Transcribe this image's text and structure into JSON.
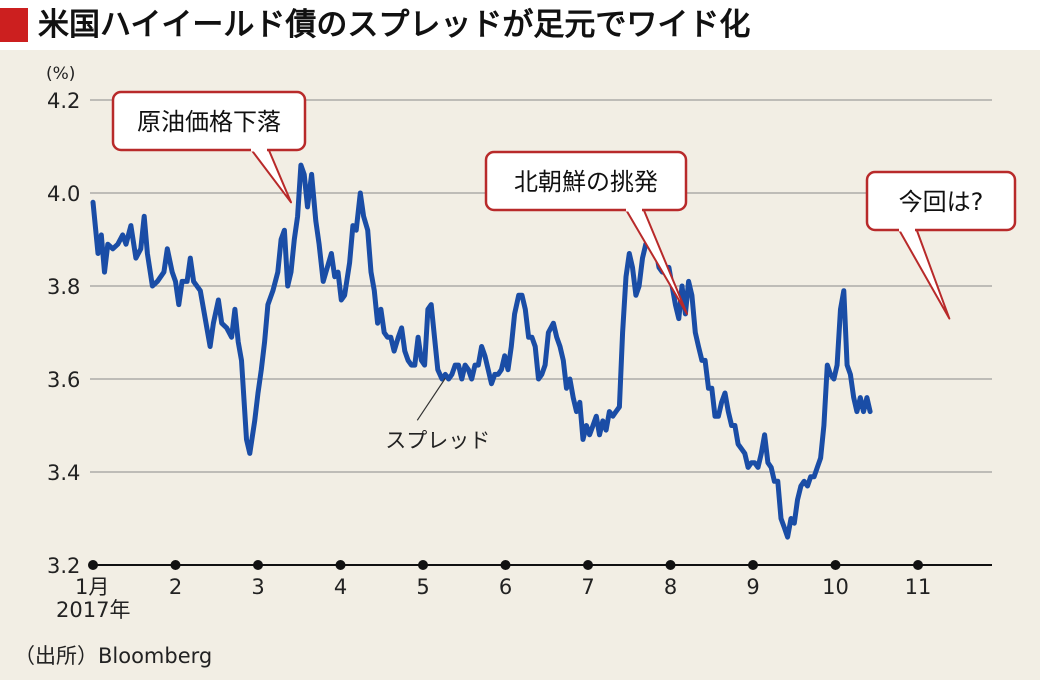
{
  "title": "米国ハイイールド債のスプレッドが足元でワイド化",
  "source": "（出所）Bloomberg",
  "colors": {
    "accent_red": "#cc1f1f",
    "line_blue": "#1a4da6",
    "panel_bg": "#f2eee4",
    "callout_border": "#b82a2a"
  },
  "chart_data": {
    "type": "line",
    "unit_label": "(%)",
    "y_ticks": [
      "4.2",
      "4.0",
      "3.8",
      "3.6",
      "3.4",
      "3.2"
    ],
    "y_tick_values": [
      4.2,
      4.0,
      3.8,
      3.6,
      3.4,
      3.2
    ],
    "ylim": [
      3.2,
      4.2
    ],
    "x_ticks": [
      "1月",
      "2",
      "3",
      "4",
      "5",
      "6",
      "7",
      "8",
      "9",
      "10",
      "11"
    ],
    "x_tick_sub": "2017年",
    "xlim": [
      0,
      10.9
    ],
    "grid": true,
    "series": [
      {
        "name": "スプレッド",
        "points": [
          [
            0.0,
            3.98
          ],
          [
            0.06,
            3.87
          ],
          [
            0.1,
            3.91
          ],
          [
            0.14,
            3.83
          ],
          [
            0.18,
            3.89
          ],
          [
            0.24,
            3.88
          ],
          [
            0.3,
            3.89
          ],
          [
            0.36,
            3.91
          ],
          [
            0.4,
            3.89
          ],
          [
            0.46,
            3.93
          ],
          [
            0.52,
            3.86
          ],
          [
            0.58,
            3.88
          ],
          [
            0.62,
            3.95
          ],
          [
            0.66,
            3.87
          ],
          [
            0.72,
            3.8
          ],
          [
            0.78,
            3.81
          ],
          [
            0.86,
            3.83
          ],
          [
            0.9,
            3.88
          ],
          [
            0.96,
            3.83
          ],
          [
            1.0,
            3.81
          ],
          [
            1.04,
            3.76
          ],
          [
            1.08,
            3.81
          ],
          [
            1.14,
            3.81
          ],
          [
            1.18,
            3.86
          ],
          [
            1.22,
            3.81
          ],
          [
            1.3,
            3.79
          ],
          [
            1.36,
            3.73
          ],
          [
            1.42,
            3.67
          ],
          [
            1.46,
            3.72
          ],
          [
            1.52,
            3.77
          ],
          [
            1.56,
            3.72
          ],
          [
            1.62,
            3.71
          ],
          [
            1.68,
            3.69
          ],
          [
            1.72,
            3.75
          ],
          [
            1.76,
            3.68
          ],
          [
            1.8,
            3.64
          ],
          [
            1.86,
            3.47
          ],
          [
            1.9,
            3.44
          ],
          [
            1.96,
            3.51
          ],
          [
            2.0,
            3.57
          ],
          [
            2.04,
            3.62
          ],
          [
            2.08,
            3.68
          ],
          [
            2.12,
            3.76
          ],
          [
            2.18,
            3.79
          ],
          [
            2.24,
            3.83
          ],
          [
            2.28,
            3.9
          ],
          [
            2.32,
            3.92
          ],
          [
            2.36,
            3.8
          ],
          [
            2.4,
            3.83
          ],
          [
            2.44,
            3.9
          ],
          [
            2.48,
            3.95
          ],
          [
            2.52,
            4.06
          ],
          [
            2.56,
            4.04
          ],
          [
            2.6,
            3.97
          ],
          [
            2.65,
            4.04
          ],
          [
            2.7,
            3.94
          ],
          [
            2.74,
            3.89
          ],
          [
            2.79,
            3.81
          ],
          [
            2.84,
            3.84
          ],
          [
            2.89,
            3.87
          ],
          [
            2.93,
            3.82
          ],
          [
            2.97,
            3.83
          ],
          [
            3.01,
            3.77
          ],
          [
            3.05,
            3.78
          ],
          [
            3.11,
            3.85
          ],
          [
            3.15,
            3.93
          ],
          [
            3.19,
            3.92
          ],
          [
            3.24,
            4.0
          ],
          [
            3.28,
            3.95
          ],
          [
            3.33,
            3.92
          ],
          [
            3.37,
            3.83
          ],
          [
            3.41,
            3.79
          ],
          [
            3.45,
            3.72
          ],
          [
            3.49,
            3.75
          ],
          [
            3.53,
            3.7
          ],
          [
            3.57,
            3.69
          ],
          [
            3.61,
            3.69
          ],
          [
            3.65,
            3.66
          ],
          [
            3.7,
            3.69
          ],
          [
            3.74,
            3.71
          ],
          [
            3.78,
            3.66
          ],
          [
            3.82,
            3.64
          ],
          [
            3.86,
            3.63
          ],
          [
            3.9,
            3.63
          ],
          [
            3.94,
            3.69
          ],
          [
            3.98,
            3.64
          ],
          [
            4.02,
            3.63
          ],
          [
            4.06,
            3.75
          ],
          [
            4.1,
            3.76
          ],
          [
            4.14,
            3.69
          ],
          [
            4.18,
            3.62
          ],
          [
            4.23,
            3.6
          ],
          [
            4.27,
            3.61
          ],
          [
            4.31,
            3.6
          ],
          [
            4.35,
            3.61
          ],
          [
            4.39,
            3.63
          ],
          [
            4.43,
            3.63
          ],
          [
            4.47,
            3.6
          ],
          [
            4.51,
            3.63
          ],
          [
            4.55,
            3.62
          ],
          [
            4.59,
            3.6
          ],
          [
            4.63,
            3.63
          ],
          [
            4.67,
            3.63
          ],
          [
            4.71,
            3.67
          ],
          [
            4.75,
            3.65
          ],
          [
            4.79,
            3.62
          ],
          [
            4.83,
            3.59
          ],
          [
            4.87,
            3.61
          ],
          [
            4.91,
            3.61
          ],
          [
            4.95,
            3.62
          ],
          [
            4.99,
            3.65
          ],
          [
            5.03,
            3.62
          ],
          [
            5.07,
            3.67
          ],
          [
            5.11,
            3.74
          ],
          [
            5.16,
            3.78
          ],
          [
            5.2,
            3.78
          ],
          [
            5.24,
            3.75
          ],
          [
            5.28,
            3.69
          ],
          [
            5.32,
            3.69
          ],
          [
            5.36,
            3.67
          ],
          [
            5.4,
            3.6
          ],
          [
            5.44,
            3.61
          ],
          [
            5.48,
            3.63
          ],
          [
            5.52,
            3.7
          ],
          [
            5.58,
            3.72
          ],
          [
            5.62,
            3.69
          ],
          [
            5.66,
            3.67
          ],
          [
            5.7,
            3.64
          ],
          [
            5.74,
            3.58
          ],
          [
            5.78,
            3.6
          ],
          [
            5.82,
            3.56
          ],
          [
            5.86,
            3.53
          ],
          [
            5.9,
            3.55
          ],
          [
            5.94,
            3.47
          ],
          [
            5.98,
            3.5
          ],
          [
            6.02,
            3.48
          ],
          [
            6.06,
            3.5
          ],
          [
            6.1,
            3.52
          ],
          [
            6.14,
            3.48
          ],
          [
            6.18,
            3.51
          ],
          [
            6.22,
            3.49
          ],
          [
            6.26,
            3.53
          ],
          [
            6.3,
            3.52
          ],
          [
            6.34,
            3.53
          ],
          [
            6.38,
            3.54
          ],
          [
            6.42,
            3.7
          ],
          [
            6.46,
            3.82
          ],
          [
            6.5,
            3.87
          ],
          [
            6.54,
            3.84
          ],
          [
            6.58,
            3.78
          ],
          [
            6.62,
            3.8
          ],
          [
            6.66,
            3.86
          ],
          [
            6.7,
            3.89
          ],
          [
            6.74,
            3.9
          ],
          [
            6.78,
            3.88
          ],
          [
            6.82,
            3.88
          ],
          [
            6.86,
            3.84
          ],
          [
            6.9,
            3.83
          ],
          [
            6.94,
            3.83
          ],
          [
            6.98,
            3.84
          ],
          [
            7.02,
            3.8
          ],
          [
            7.06,
            3.76
          ],
          [
            7.1,
            3.73
          ],
          [
            7.14,
            3.8
          ],
          [
            7.18,
            3.74
          ],
          [
            7.22,
            3.81
          ],
          [
            7.26,
            3.78
          ],
          [
            7.3,
            3.7
          ],
          [
            7.34,
            3.67
          ],
          [
            7.38,
            3.64
          ],
          [
            7.42,
            3.64
          ],
          [
            7.46,
            3.58
          ],
          [
            7.5,
            3.58
          ],
          [
            7.54,
            3.52
          ],
          [
            7.58,
            3.52
          ],
          [
            7.62,
            3.55
          ],
          [
            7.66,
            3.57
          ],
          [
            7.7,
            3.53
          ],
          [
            7.74,
            3.5
          ],
          [
            7.78,
            3.5
          ],
          [
            7.82,
            3.46
          ],
          [
            7.86,
            3.45
          ],
          [
            7.9,
            3.44
          ],
          [
            7.94,
            3.41
          ],
          [
            7.98,
            3.42
          ],
          [
            8.02,
            3.42
          ],
          [
            8.06,
            3.41
          ],
          [
            8.1,
            3.44
          ],
          [
            8.14,
            3.48
          ],
          [
            8.18,
            3.42
          ],
          [
            8.22,
            3.41
          ],
          [
            8.26,
            3.38
          ],
          [
            8.3,
            3.38
          ],
          [
            8.34,
            3.3
          ],
          [
            8.38,
            3.28
          ],
          [
            8.42,
            3.26
          ],
          [
            8.46,
            3.3
          ],
          [
            8.5,
            3.29
          ],
          [
            8.54,
            3.34
          ],
          [
            8.58,
            3.37
          ],
          [
            8.62,
            3.38
          ],
          [
            8.66,
            3.37
          ],
          [
            8.7,
            3.39
          ],
          [
            8.74,
            3.39
          ],
          [
            8.78,
            3.41
          ],
          [
            8.82,
            3.43
          ],
          [
            8.86,
            3.5
          ],
          [
            8.9,
            3.63
          ],
          [
            8.94,
            3.61
          ],
          [
            8.98,
            3.6
          ],
          [
            9.02,
            3.63
          ],
          [
            9.06,
            3.75
          ],
          [
            9.1,
            3.79
          ],
          [
            9.14,
            3.63
          ],
          [
            9.18,
            3.61
          ],
          [
            9.22,
            3.56
          ],
          [
            9.26,
            3.53
          ],
          [
            9.3,
            3.56
          ],
          [
            9.34,
            3.53
          ],
          [
            9.38,
            3.56
          ],
          [
            9.42,
            3.53
          ]
        ]
      }
    ],
    "annotations": [
      {
        "text": "原油価格下落",
        "point": [
          2.4,
          3.98
        ]
      },
      {
        "text": "北朝鮮の挑発",
        "point": [
          7.2,
          3.74
        ]
      },
      {
        "text": "今回は?",
        "point": [
          10.38,
          3.73
        ]
      }
    ],
    "series_label": {
      "text": "スプレッド",
      "point": [
        4.27,
        3.61
      ]
    }
  }
}
